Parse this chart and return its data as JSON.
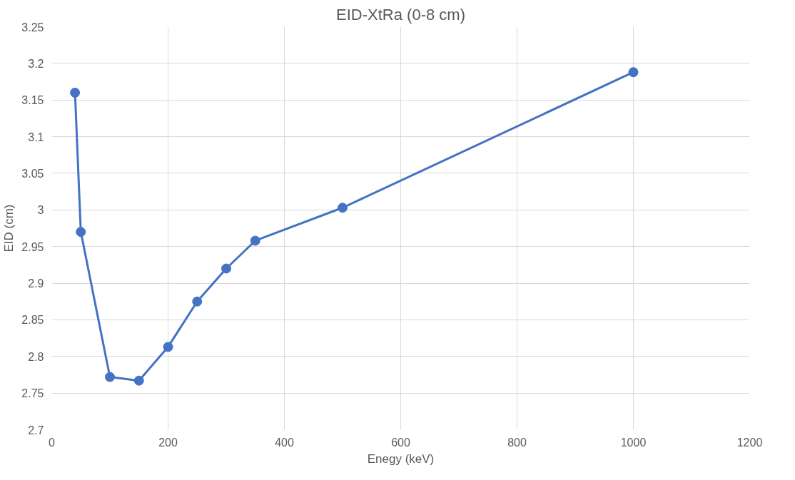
{
  "chart_data": {
    "type": "line",
    "title": "EID-XtRa (0-8 cm)",
    "xlabel": "Enegy (keV)",
    "ylabel": "EID (cm)",
    "x": [
      40,
      50,
      100,
      150,
      200,
      250,
      300,
      350,
      500,
      1000
    ],
    "series": [
      {
        "color": "#4472c4",
        "values": [
          3.16,
          2.97,
          2.772,
          2.767,
          2.813,
          2.875,
          2.92,
          2.958,
          3.003,
          3.188
        ]
      }
    ],
    "xlim": [
      0,
      1200
    ],
    "xticks": [
      0,
      200,
      400,
      600,
      800,
      1000,
      1200
    ],
    "ylim": [
      2.7,
      3.25
    ],
    "yticks": [
      2.7,
      2.75,
      2.8,
      2.85,
      2.9,
      2.95,
      3,
      3.05,
      3.1,
      3.15,
      3.2,
      3.25
    ],
    "grid": true,
    "marker": "circle",
    "line_style": "solid"
  }
}
